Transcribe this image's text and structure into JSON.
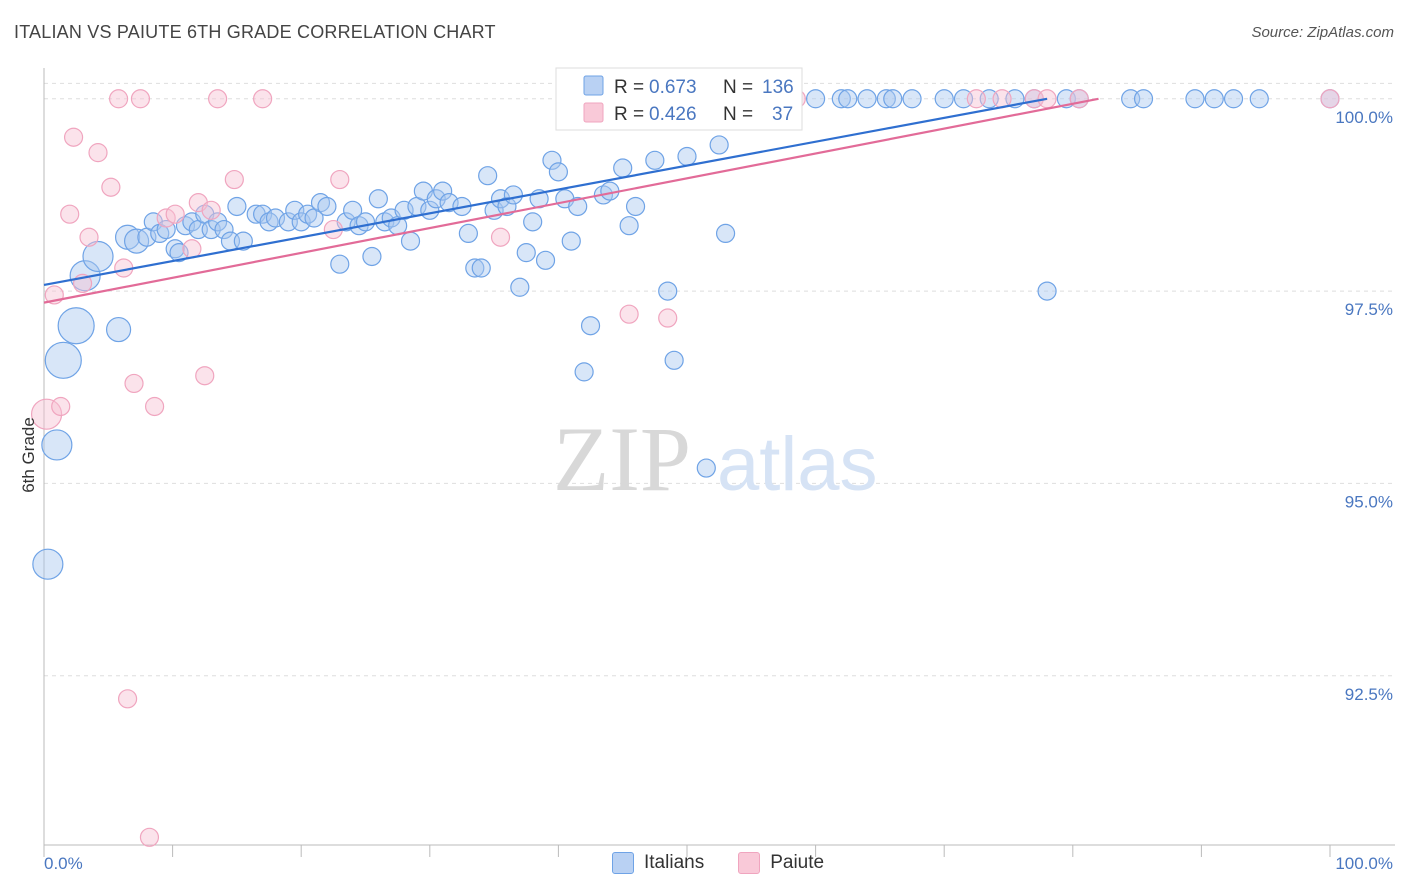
{
  "title": "ITALIAN VS PAIUTE 6TH GRADE CORRELATION CHART",
  "source": "Source: ZipAtlas.com",
  "colors": {
    "blue": "#6fa3e6",
    "blue_line": "#2f6fd0",
    "pink": "#f0a5bf",
    "pink_line": "#e26b98",
    "tick": "#4a77c0"
  },
  "chart_data": {
    "type": "scatter",
    "title": "ITALIAN VS PAIUTE 6TH GRADE CORRELATION CHART",
    "xlabel": "",
    "ylabel": "6th Grade",
    "xlim": [
      0,
      100
    ],
    "ylim": [
      90.3,
      100.4
    ],
    "x_tick_labels": [
      "0.0%",
      "100.0%"
    ],
    "y_ticks": [
      92.5,
      95.0,
      97.5,
      100.0
    ],
    "y_tick_labels": [
      "92.5%",
      "95.0%",
      "97.5%",
      "100.0%"
    ],
    "legend": [
      {
        "name": "Italians",
        "R_label": "R =",
        "R": "0.673",
        "N_label": "N =",
        "N": "136"
      },
      {
        "name": "Paiute",
        "R_label": "R =",
        "R": "0.426",
        "N_label": "N =",
        "N": "37"
      }
    ],
    "series": [
      {
        "name": "Italians",
        "trend": {
          "x": [
            0,
            78
          ],
          "y": [
            97.58,
            100.0
          ]
        },
        "points": [
          [
            0.3,
            93.95,
            3
          ],
          [
            1.0,
            95.5,
            3
          ],
          [
            1.5,
            96.6,
            4
          ],
          [
            2.5,
            97.05,
            4
          ],
          [
            3.2,
            97.7,
            3
          ],
          [
            4.2,
            97.95,
            3
          ],
          [
            5.8,
            97.0,
            2
          ],
          [
            6.5,
            98.2,
            2
          ],
          [
            7.2,
            98.15,
            2
          ],
          [
            8.0,
            98.2,
            1
          ],
          [
            8.5,
            98.4,
            1
          ],
          [
            9.0,
            98.25,
            1
          ],
          [
            9.5,
            98.3,
            1
          ],
          [
            10.2,
            98.05,
            1
          ],
          [
            10.5,
            98.0,
            1
          ],
          [
            11.0,
            98.35,
            1
          ],
          [
            11.5,
            98.4,
            1
          ],
          [
            12.0,
            98.3,
            1
          ],
          [
            12.5,
            98.5,
            1
          ],
          [
            13.0,
            98.3,
            1
          ],
          [
            13.5,
            98.4,
            1
          ],
          [
            14.0,
            98.3,
            1
          ],
          [
            14.5,
            98.15,
            1
          ],
          [
            15.0,
            98.6,
            1
          ],
          [
            15.5,
            98.15,
            1
          ],
          [
            16.5,
            98.5,
            1
          ],
          [
            17.0,
            98.5,
            1
          ],
          [
            17.5,
            98.4,
            1
          ],
          [
            18.0,
            98.45,
            1
          ],
          [
            19.0,
            98.4,
            1
          ],
          [
            19.5,
            98.55,
            1
          ],
          [
            20.0,
            98.4,
            1
          ],
          [
            20.5,
            98.5,
            1
          ],
          [
            21.0,
            98.45,
            1
          ],
          [
            21.5,
            98.65,
            1
          ],
          [
            22.0,
            98.6,
            1
          ],
          [
            23.0,
            97.85,
            1
          ],
          [
            23.5,
            98.4,
            1
          ],
          [
            24.0,
            98.55,
            1
          ],
          [
            24.5,
            98.35,
            1
          ],
          [
            25.0,
            98.4,
            1
          ],
          [
            25.5,
            97.95,
            1
          ],
          [
            26.0,
            98.7,
            1
          ],
          [
            26.5,
            98.4,
            1
          ],
          [
            27.0,
            98.45,
            1
          ],
          [
            27.5,
            98.35,
            1
          ],
          [
            28.0,
            98.55,
            1
          ],
          [
            28.5,
            98.15,
            1
          ],
          [
            29.0,
            98.6,
            1
          ],
          [
            29.5,
            98.8,
            1
          ],
          [
            30.0,
            98.55,
            1
          ],
          [
            30.5,
            98.7,
            1
          ],
          [
            31.0,
            98.8,
            1
          ],
          [
            31.5,
            98.65,
            1
          ],
          [
            32.5,
            98.6,
            1
          ],
          [
            33.0,
            98.25,
            1
          ],
          [
            33.5,
            97.8,
            1
          ],
          [
            34.0,
            97.8,
            1
          ],
          [
            34.5,
            99.0,
            1
          ],
          [
            35.0,
            98.55,
            1
          ],
          [
            35.5,
            98.7,
            1
          ],
          [
            36.0,
            98.6,
            1
          ],
          [
            36.5,
            98.75,
            1
          ],
          [
            37.0,
            97.55,
            1
          ],
          [
            37.5,
            98.0,
            1
          ],
          [
            38.0,
            98.4,
            1
          ],
          [
            38.5,
            98.7,
            1
          ],
          [
            39.0,
            97.9,
            1
          ],
          [
            39.5,
            99.2,
            1
          ],
          [
            40.0,
            99.05,
            1
          ],
          [
            40.5,
            98.7,
            1
          ],
          [
            41.0,
            98.15,
            1
          ],
          [
            41.5,
            98.6,
            1
          ],
          [
            42.0,
            96.45,
            1
          ],
          [
            42.5,
            97.05,
            1
          ],
          [
            43.5,
            98.75,
            1
          ],
          [
            44.0,
            98.8,
            1
          ],
          [
            45.0,
            99.1,
            1
          ],
          [
            45.5,
            98.35,
            1
          ],
          [
            46.0,
            98.6,
            1
          ],
          [
            47.5,
            99.2,
            1
          ],
          [
            48.5,
            97.5,
            1
          ],
          [
            49.0,
            96.6,
            1
          ],
          [
            50.0,
            99.25,
            1
          ],
          [
            51.5,
            95.2,
            1
          ],
          [
            52.5,
            99.4,
            1
          ],
          [
            53.0,
            98.25,
            1
          ],
          [
            55.5,
            100.0,
            1
          ],
          [
            57.0,
            100.0,
            1
          ],
          [
            60.0,
            100.0,
            1
          ],
          [
            62.0,
            100.0,
            1
          ],
          [
            64.0,
            100.0,
            1
          ],
          [
            65.5,
            100.0,
            1
          ],
          [
            67.5,
            100.0,
            1
          ],
          [
            70.0,
            100.0,
            1
          ],
          [
            71.5,
            100.0,
            1
          ],
          [
            73.5,
            100.0,
            1
          ],
          [
            75.5,
            100.0,
            1
          ],
          [
            77.0,
            100.0,
            1
          ],
          [
            78.0,
            97.5,
            1
          ],
          [
            79.5,
            100.0,
            1
          ],
          [
            80.5,
            100.0,
            1
          ],
          [
            84.5,
            100.0,
            1
          ],
          [
            85.5,
            100.0,
            1
          ],
          [
            89.5,
            100.0,
            1
          ],
          [
            91.0,
            100.0,
            1
          ],
          [
            92.5,
            100.0,
            1
          ],
          [
            94.5,
            100.0,
            1
          ],
          [
            100.0,
            100.0,
            1
          ],
          [
            62.5,
            100.0,
            1
          ],
          [
            66.0,
            100.0,
            1
          ]
        ]
      },
      {
        "name": "Paiute",
        "trend": {
          "x": [
            0,
            82
          ],
          "y": [
            97.35,
            100.0
          ]
        },
        "points": [
          [
            0.2,
            95.9,
            3
          ],
          [
            0.8,
            97.45,
            1
          ],
          [
            1.3,
            96.0,
            1
          ],
          [
            2.0,
            98.5,
            1
          ],
          [
            2.3,
            99.5,
            1
          ],
          [
            3.0,
            97.6,
            1
          ],
          [
            3.5,
            98.2,
            1
          ],
          [
            4.2,
            99.3,
            1
          ],
          [
            5.2,
            98.85,
            1
          ],
          [
            5.8,
            100.0,
            1
          ],
          [
            6.2,
            97.8,
            1
          ],
          [
            6.5,
            92.2,
            1
          ],
          [
            7.0,
            96.3,
            1
          ],
          [
            7.5,
            100.0,
            1
          ],
          [
            8.2,
            90.4,
            1
          ],
          [
            8.6,
            96.0,
            1
          ],
          [
            9.5,
            98.45,
            1
          ],
          [
            10.2,
            98.5,
            1
          ],
          [
            11.5,
            98.05,
            1
          ],
          [
            12.0,
            98.65,
            1
          ],
          [
            12.5,
            96.4,
            1
          ],
          [
            13.0,
            98.55,
            1
          ],
          [
            13.5,
            100.0,
            1
          ],
          [
            14.8,
            98.95,
            1
          ],
          [
            17.0,
            100.0,
            1
          ],
          [
            22.5,
            98.3,
            1
          ],
          [
            23.0,
            98.95,
            1
          ],
          [
            35.5,
            98.2,
            1
          ],
          [
            45.5,
            97.2,
            1
          ],
          [
            48.5,
            97.15,
            1
          ],
          [
            72.5,
            100.0,
            1
          ],
          [
            74.5,
            100.0,
            1
          ],
          [
            77.0,
            100.0,
            1
          ],
          [
            78.0,
            100.0,
            1
          ],
          [
            80.5,
            100.0,
            1
          ],
          [
            100.0,
            100.0,
            1
          ],
          [
            58.5,
            100.0,
            1
          ]
        ]
      }
    ]
  },
  "bottom_legend": {
    "italians": "Italians",
    "paiute": "Paiute"
  },
  "watermark": {
    "zip": "ZIP",
    "atlas": "atlas"
  }
}
